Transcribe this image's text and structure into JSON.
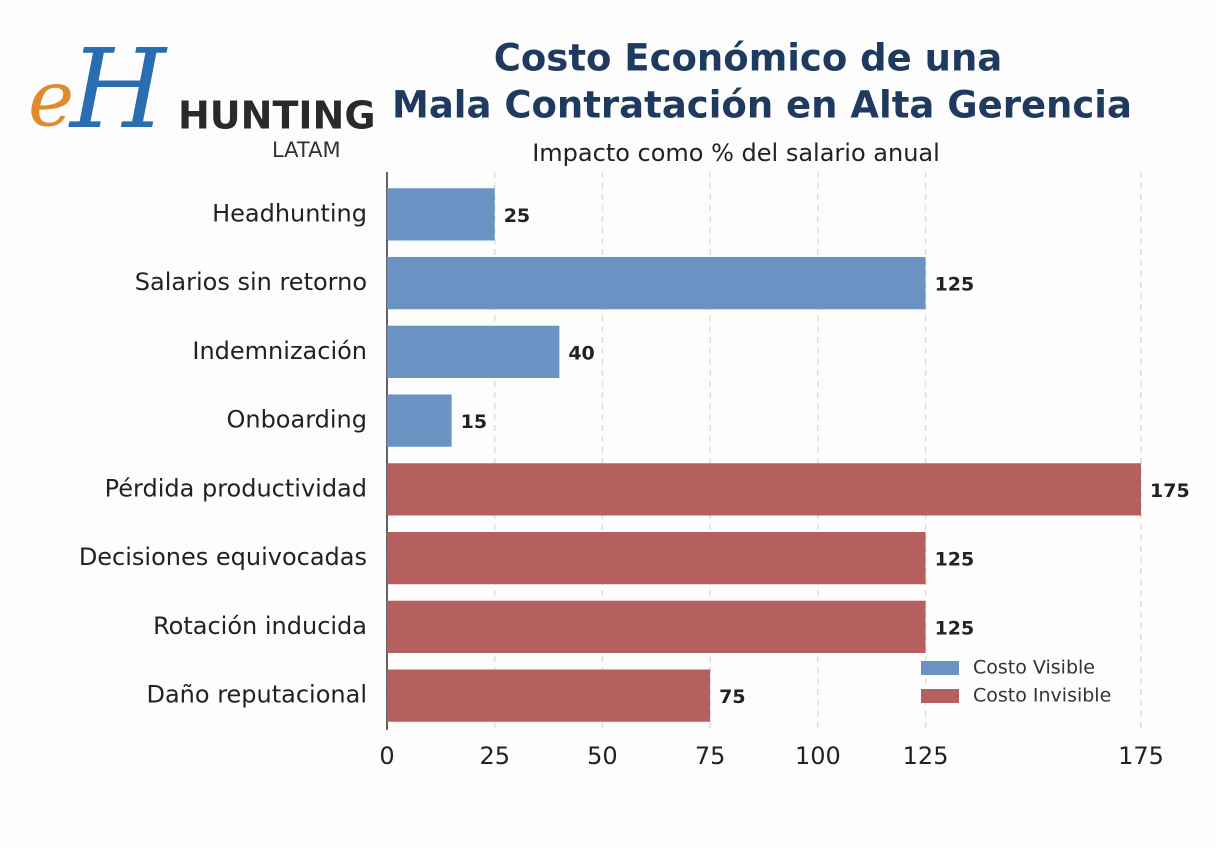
{
  "logo": {
    "mark_e": "e",
    "mark_h": "H",
    "name": "HUNTING",
    "region": "LATAM"
  },
  "chart_data": {
    "type": "hbar",
    "title": [
      "Costo Económico de una",
      "Mala Contratación en Alta Gerencia"
    ],
    "subtitle": "Impacto como % del salario anual",
    "categories": [
      "Headhunting",
      "Salarios sin retorno",
      "Indemnización",
      "Onboarding",
      "Pérdida productividad",
      "Decisiones equivocadas",
      "Rotación inducida",
      "Daño reputacional"
    ],
    "series": [
      {
        "name": "Costo Visible",
        "color": "#6a93c3",
        "values": [
          25,
          125,
          40,
          15,
          null,
          null,
          null,
          null
        ]
      },
      {
        "name": "Costo Invisible",
        "color": "#b5605e",
        "values": [
          null,
          null,
          null,
          null,
          175,
          125,
          125,
          75
        ]
      }
    ],
    "xlim": [
      0,
      175
    ],
    "xticks": [
      0,
      25,
      50,
      75,
      100,
      125,
      175
    ],
    "grid": true,
    "legend": "lower right"
  }
}
